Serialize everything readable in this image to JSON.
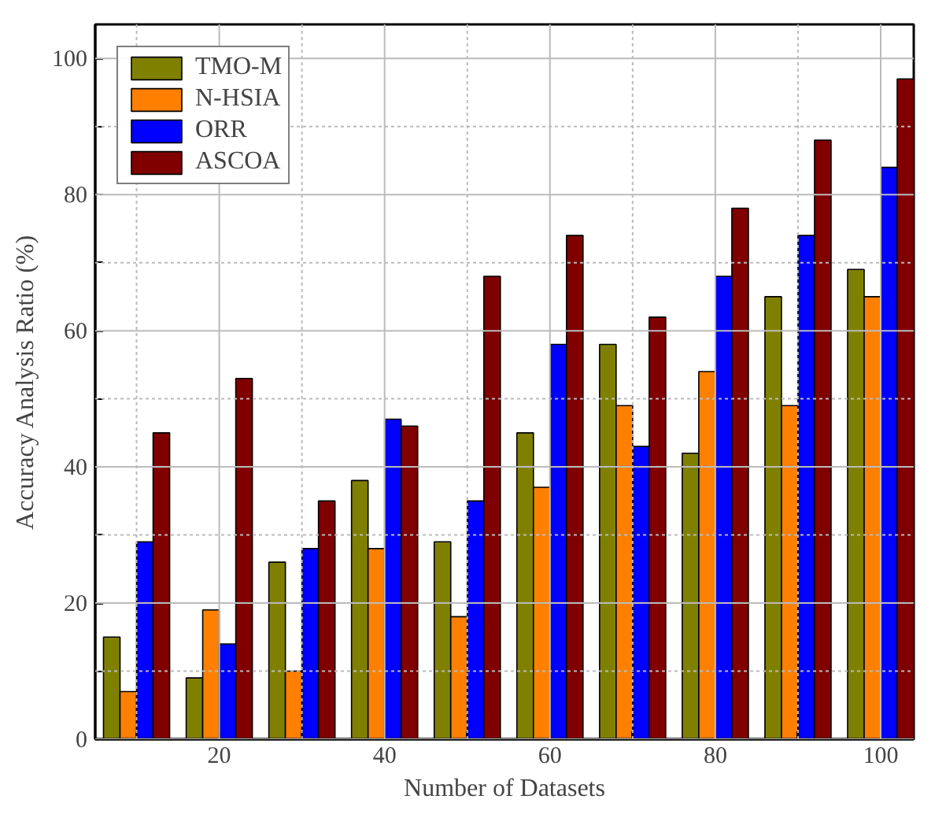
{
  "chart_data": {
    "type": "bar",
    "xlabel": "Number of Datasets",
    "ylabel": "Accuracy Analysis Ratio (%)",
    "x": [
      10,
      20,
      30,
      40,
      50,
      60,
      70,
      80,
      90,
      100
    ],
    "series": [
      {
        "name": "TMO-M",
        "color": "#808000",
        "values": [
          15,
          9,
          26,
          38,
          29,
          45,
          58,
          42,
          65,
          69
        ]
      },
      {
        "name": "N-HSIA",
        "color": "#ff8000",
        "values": [
          7,
          19,
          10,
          28,
          18,
          37,
          49,
          54,
          49,
          65
        ]
      },
      {
        "name": "ORR",
        "color": "#0000ff",
        "values": [
          29,
          14,
          28,
          47,
          35,
          58,
          43,
          68,
          74,
          84
        ]
      },
      {
        "name": "ASCOA",
        "color": "#800000",
        "values": [
          45,
          53,
          35,
          46,
          68,
          74,
          62,
          78,
          88,
          97
        ]
      }
    ],
    "xlim": [
      5,
      104
    ],
    "ylim": [
      0,
      105
    ],
    "xticks": [
      {
        "value": 10,
        "label": null
      },
      20,
      {
        "value": 30,
        "label": null
      },
      40,
      {
        "value": 50,
        "label": null
      },
      60,
      {
        "value": 70,
        "label": null
      },
      80,
      {
        "value": 90,
        "label": null
      },
      100
    ],
    "yticks": [
      0,
      {
        "value": 10,
        "label": null
      },
      20,
      {
        "value": 30,
        "label": null
      },
      40,
      {
        "value": 50,
        "label": null
      },
      60,
      {
        "value": 70,
        "label": null
      },
      80,
      {
        "value": 90,
        "label": null
      },
      100
    ],
    "grid": true,
    "legend": "top left"
  }
}
